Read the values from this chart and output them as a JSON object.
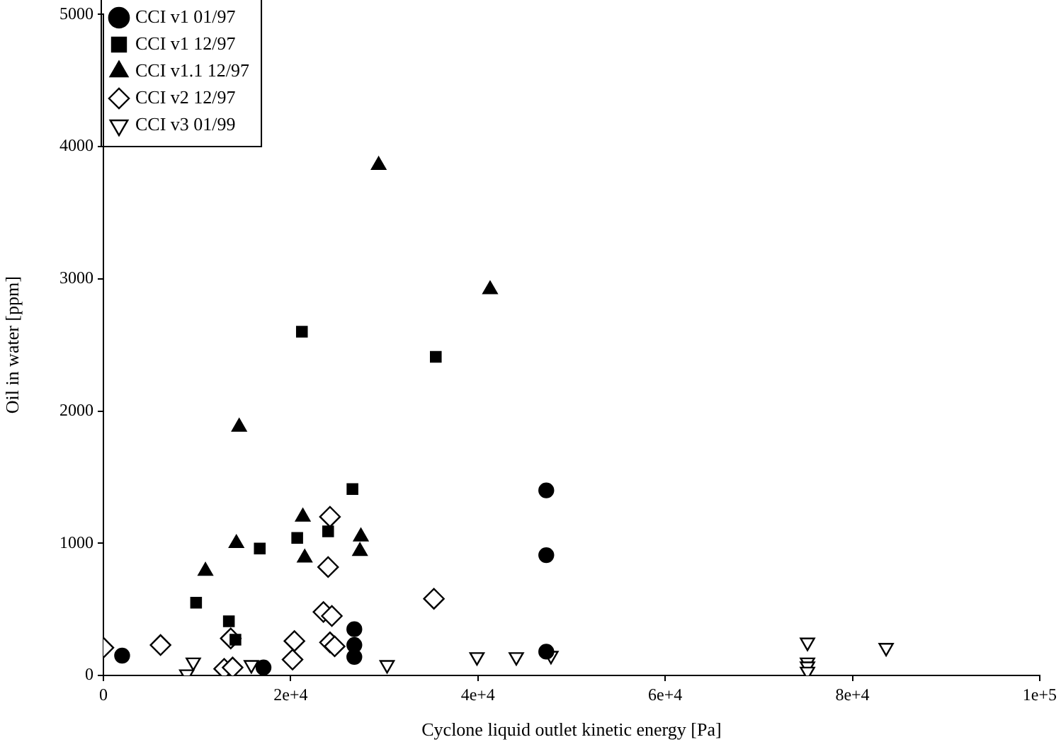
{
  "chart_data": {
    "type": "scatter",
    "xlabel": "Cyclone liquid outlet kinetic energy [Pa]",
    "ylabel": "Oil in water [ppm]",
    "xlim": [
      0,
      100000
    ],
    "xticks": [
      {
        "value": 0,
        "label": "0"
      },
      {
        "value": 20000,
        "label": "2e+4"
      },
      {
        "value": 40000,
        "label": "4e+4"
      },
      {
        "value": 60000,
        "label": "6e+4"
      },
      {
        "value": 80000,
        "label": "8e+4"
      },
      {
        "value": 100000,
        "label": "1e+5"
      }
    ],
    "ylim": [
      0,
      5000
    ],
    "yticks": [
      0,
      1000,
      2000,
      3000,
      4000,
      5000
    ],
    "grid": false,
    "legend": "top left",
    "series": [
      {
        "name": "CCI v1 01/97",
        "color": "#000000",
        "marker": "circle",
        "x": [
          2000,
          17100,
          26800,
          26800,
          26800,
          47300,
          47300,
          47300
        ],
        "values": [
          150,
          60,
          350,
          230,
          140,
          1400,
          910,
          180
        ]
      },
      {
        "name": "CCI v1 12/97",
        "color": "#000000",
        "marker": "square",
        "x": [
          21200,
          35500,
          26600,
          20700,
          24000,
          16700,
          9900,
          13400,
          14100
        ],
        "values": [
          2600,
          2410,
          1410,
          1040,
          1090,
          960,
          550,
          410,
          270
        ]
      },
      {
        "name": "CCI v1.1 12/97",
        "color": "#000000",
        "marker": "triangle",
        "x": [
          29400,
          41300,
          14500,
          10900,
          14200,
          21300,
          21500,
          27500,
          27400
        ],
        "values": [
          3860,
          2920,
          1880,
          790,
          1000,
          1200,
          890,
          1050,
          940
        ]
      },
      {
        "name": "CCI v2 12/97",
        "color": "#000000",
        "marker": "diamond",
        "x": [
          24200,
          24000,
          35300,
          23500,
          24400,
          0,
          6100,
          13600,
          12900,
          13800,
          20400,
          20200,
          24200,
          24700
        ],
        "values": [
          1200,
          820,
          580,
          480,
          450,
          210,
          230,
          280,
          50,
          60,
          260,
          120,
          250,
          220
        ]
      },
      {
        "name": "CCI v3 01/99",
        "color": "#000000",
        "marker": "triangle-down",
        "x": [
          9600,
          8900,
          15800,
          30300,
          39900,
          44100,
          47800,
          75200,
          75200,
          75200,
          75200,
          83600
        ],
        "values": [
          100,
          10,
          80,
          80,
          140,
          140,
          150,
          250,
          100,
          70,
          30,
          210
        ]
      }
    ]
  }
}
